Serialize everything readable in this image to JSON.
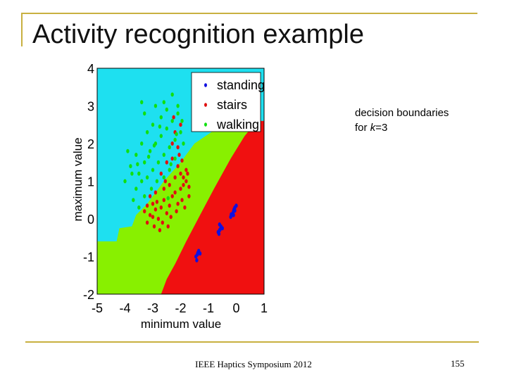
{
  "slide": {
    "title": "Activity recognition example",
    "annotation_line1": "decision boundaries",
    "annotation_line2_prefix": "for ",
    "annotation_k": "k",
    "annotation_eq": "=3",
    "footer": "IEEE Haptics Symposium 2012",
    "page_number": "155",
    "frame_color": "#c8b040"
  },
  "chart_data": {
    "type": "scatter",
    "title": "",
    "xlabel": "minimum value",
    "ylabel": "maximum value",
    "xlim": [
      -5,
      1
    ],
    "ylim": [
      -2,
      4
    ],
    "xticks": [
      "-5",
      "-4",
      "-3",
      "-2",
      "-1",
      "0",
      "1"
    ],
    "yticks": [
      "4",
      "3",
      "2",
      "1",
      "0",
      "-1",
      "-2"
    ],
    "grid": false,
    "legend_position": "top-right",
    "regions": [
      {
        "class": "standing",
        "color": "#1ee0f0"
      },
      {
        "class": "walking",
        "color": "#88f000"
      },
      {
        "class": "stairs",
        "color": "#f01010"
      }
    ],
    "series": [
      {
        "name": "standing",
        "color": "#1010e0",
        "points": [
          [
            -0.1,
            0.2
          ],
          [
            -0.05,
            0.3
          ],
          [
            -0.15,
            0.1
          ],
          [
            0.0,
            0.35
          ],
          [
            -0.12,
            0.15
          ],
          [
            -0.08,
            0.25
          ],
          [
            -0.2,
            0.05
          ],
          [
            -0.1,
            0.1
          ],
          [
            -0.05,
            0.22
          ],
          [
            -0.18,
            0.12
          ],
          [
            -0.6,
            -0.3
          ],
          [
            -0.55,
            -0.2
          ],
          [
            -0.65,
            -0.35
          ],
          [
            -0.58,
            -0.28
          ],
          [
            -0.62,
            -0.4
          ],
          [
            -0.5,
            -0.25
          ],
          [
            -0.6,
            -0.15
          ],
          [
            -1.4,
            -0.95
          ],
          [
            -1.35,
            -0.85
          ],
          [
            -1.45,
            -1.0
          ],
          [
            -1.38,
            -0.9
          ],
          [
            -1.42,
            -1.1
          ],
          [
            -1.3,
            -0.92
          ]
        ]
      },
      {
        "name": "stairs",
        "color": "#e01010",
        "points": [
          [
            -3.3,
            0.2
          ],
          [
            -3.2,
            0.35
          ],
          [
            -3.1,
            0.1
          ],
          [
            -3.0,
            0.4
          ],
          [
            -2.9,
            0.25
          ],
          [
            -2.8,
            0.0
          ],
          [
            -2.7,
            0.3
          ],
          [
            -2.6,
            0.5
          ],
          [
            -2.5,
            0.15
          ],
          [
            -2.4,
            0.35
          ],
          [
            -2.3,
            0.6
          ],
          [
            -2.2,
            0.7
          ],
          [
            -2.1,
            0.4
          ],
          [
            -2.0,
            0.8
          ],
          [
            -1.9,
            0.9
          ],
          [
            -1.8,
            1.0
          ],
          [
            -1.7,
            0.6
          ],
          [
            -3.2,
            -0.1
          ],
          [
            -2.95,
            -0.2
          ],
          [
            -2.75,
            -0.3
          ],
          [
            -2.65,
            -0.1
          ],
          [
            -2.45,
            -0.2
          ],
          [
            -2.35,
            0.05
          ],
          [
            -2.15,
            0.2
          ],
          [
            -1.95,
            0.5
          ],
          [
            -1.85,
            0.3
          ],
          [
            -2.6,
            0.8
          ],
          [
            -2.4,
            0.9
          ],
          [
            -2.2,
            1.1
          ],
          [
            -2.0,
            1.2
          ],
          [
            -1.8,
            1.3
          ],
          [
            -2.5,
            1.5
          ],
          [
            -2.3,
            1.6
          ],
          [
            -2.1,
            1.4
          ],
          [
            -1.9,
            1.1
          ],
          [
            -2.7,
            1.2
          ],
          [
            -2.9,
            0.7
          ],
          [
            -3.1,
            0.6
          ],
          [
            -2.3,
            2.0
          ],
          [
            -2.2,
            2.3
          ],
          [
            -2.1,
            1.9
          ],
          [
            -2.0,
            2.5
          ],
          [
            -2.05,
            1.7
          ],
          [
            -2.25,
            2.7
          ],
          [
            -1.95,
            1.55
          ],
          [
            -1.75,
            1.2
          ],
          [
            -1.7,
            0.85
          ],
          [
            -2.55,
            1.0
          ],
          [
            -2.85,
            0.45
          ],
          [
            -3.0,
            0.05
          ]
        ]
      },
      {
        "name": "walking",
        "color": "#10e010",
        "points": [
          [
            -3.5,
            1.2
          ],
          [
            -3.3,
            1.5
          ],
          [
            -3.1,
            1.8
          ],
          [
            -2.9,
            2.0
          ],
          [
            -2.7,
            2.2
          ],
          [
            -2.5,
            2.4
          ],
          [
            -2.3,
            2.6
          ],
          [
            -2.1,
            2.8
          ],
          [
            -2.5,
            2.9
          ],
          [
            -2.7,
            2.7
          ],
          [
            -3.0,
            2.5
          ],
          [
            -3.2,
            2.3
          ],
          [
            -3.4,
            2.0
          ],
          [
            -3.6,
            1.7
          ],
          [
            -3.8,
            1.4
          ],
          [
            -3.6,
            0.8
          ],
          [
            -3.4,
            1.0
          ],
          [
            -3.2,
            1.1
          ],
          [
            -3.0,
            1.3
          ],
          [
            -2.8,
            1.5
          ],
          [
            -2.6,
            1.7
          ],
          [
            -2.4,
            1.9
          ],
          [
            -2.2,
            2.1
          ],
          [
            -2.0,
            2.3
          ],
          [
            -1.9,
            2.0
          ],
          [
            -2.2,
            1.6
          ],
          [
            -2.4,
            1.3
          ],
          [
            -2.6,
            1.1
          ],
          [
            -3.3,
            0.6
          ],
          [
            -3.5,
            0.3
          ],
          [
            -3.7,
            0.5
          ],
          [
            -4.0,
            1.0
          ],
          [
            -3.9,
            1.8
          ],
          [
            -3.3,
            2.8
          ],
          [
            -2.9,
            3.0
          ],
          [
            -2.6,
            3.1
          ],
          [
            -2.3,
            3.3
          ],
          [
            -3.4,
            3.1
          ],
          [
            -2.1,
            3.0
          ],
          [
            -1.95,
            2.6
          ],
          [
            -2.85,
            1.0
          ],
          [
            -3.05,
            0.8
          ],
          [
            -2.45,
            0.55
          ],
          [
            -3.75,
            1.2
          ],
          [
            -2.75,
            2.45
          ],
          [
            -3.15,
            1.65
          ],
          [
            -2.35,
            1.45
          ],
          [
            -3.55,
            1.45
          ],
          [
            -2.95,
            1.95
          ],
          [
            -2.15,
            2.25
          ]
        ]
      }
    ]
  }
}
